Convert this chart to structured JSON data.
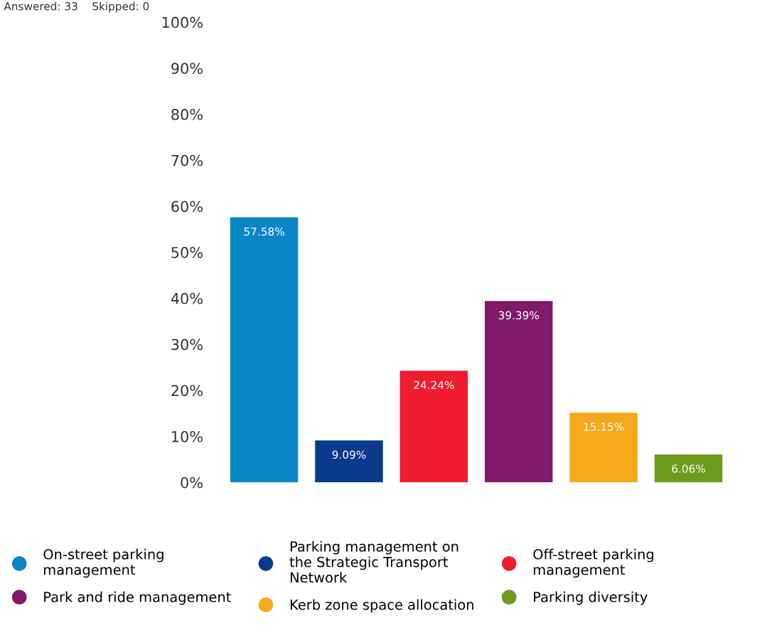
{
  "chart_data": {
    "type": "bar",
    "categories": [
      null,
      null,
      null,
      null,
      null,
      null
    ],
    "series": [
      {
        "name": "On-street parking\nmanagement",
        "color": "#0a86c6",
        "values": [
          57.58,
          null,
          null,
          null,
          null,
          null
        ],
        "value_labels": [
          "57.58%",
          null,
          null,
          null,
          null,
          null
        ]
      },
      {
        "name": "Parking management on\nthe Strategic Transport\nNetwork",
        "color": "#0a3a8c",
        "values": [
          null,
          9.09,
          null,
          null,
          null,
          null
        ],
        "value_labels": [
          null,
          "9.09%",
          null,
          null,
          null,
          null
        ]
      },
      {
        "name": "Off-street parking\nmanagement",
        "color": "#ee1c2e",
        "values": [
          null,
          null,
          24.24,
          null,
          null,
          null
        ],
        "value_labels": [
          null,
          null,
          "24.24%",
          null,
          null,
          null
        ]
      },
      {
        "name": "Park and ride management",
        "color": "#7f1a6a",
        "values": [
          null,
          null,
          null,
          39.39,
          null,
          null
        ],
        "value_labels": [
          null,
          null,
          null,
          "39.39%",
          null,
          null
        ]
      },
      {
        "name": "Kerb zone space allocation",
        "color": "#f6a81c",
        "values": [
          null,
          null,
          null,
          null,
          15.15,
          null
        ],
        "value_labels": [
          null,
          null,
          null,
          null,
          "15.15%",
          null
        ]
      },
      {
        "name": "Parking diversity",
        "color": "#6e9a1e",
        "values": [
          null,
          null,
          null,
          null,
          null,
          6.06
        ],
        "value_labels": [
          null,
          null,
          null,
          null,
          null,
          "6.06%"
        ]
      }
    ],
    "ylim": [
      0,
      100
    ],
    "yticks": [
      {
        "value": 0,
        "label": "0%"
      },
      {
        "value": 10,
        "label": "10%"
      },
      {
        "value": 20,
        "label": "20%"
      },
      {
        "value": 30,
        "label": "30%"
      },
      {
        "value": 40,
        "label": "40%"
      },
      {
        "value": 50,
        "label": "50%"
      },
      {
        "value": 60,
        "label": "60%"
      },
      {
        "value": 70,
        "label": "70%"
      },
      {
        "value": 80,
        "label": "80%"
      },
      {
        "value": 90,
        "label": "90%"
      },
      {
        "value": 100,
        "label": "100%"
      }
    ],
    "tick_labels": "y",
    "stacked": true,
    "legend": "bottom",
    "annotations": [
      "Answered: 33    Skipped: 0"
    ]
  }
}
